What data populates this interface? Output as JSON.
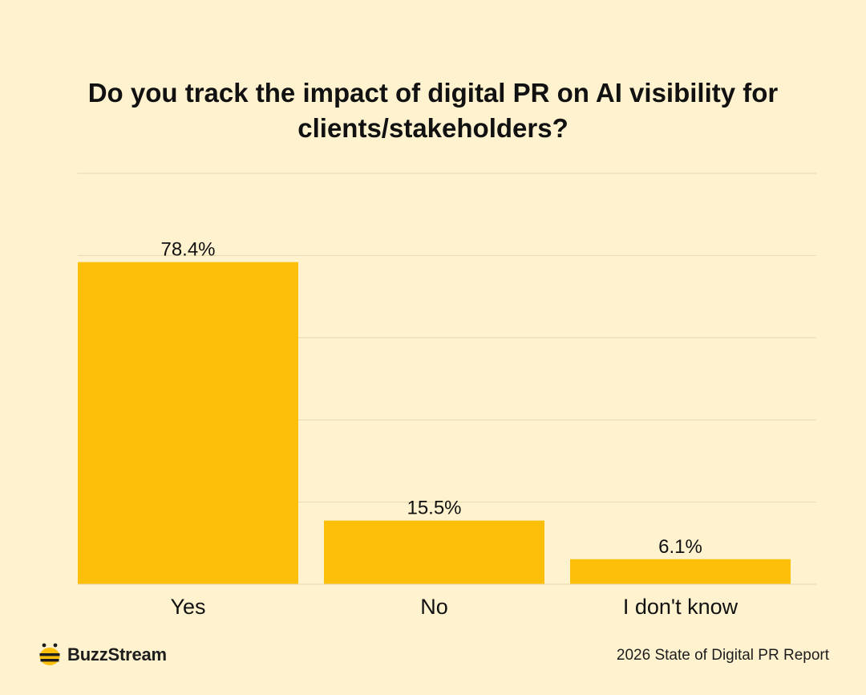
{
  "title": "Do you track the impact of digital PR on AI visibility for clients/stakeholders?",
  "colors": {
    "background": "#FEF2CF",
    "bar": "#FDBF0A",
    "gridline": "#E5D8AE",
    "text": "#111111"
  },
  "chart_data": {
    "type": "bar",
    "title": "Do you track the impact of digital PR on AI visibility for clients/stakeholders?",
    "categories": [
      "Yes",
      "No",
      "I don't know"
    ],
    "values": [
      78.4,
      15.5,
      6.1
    ],
    "value_labels": [
      "78.4%",
      "15.5%",
      "6.1%"
    ],
    "xlabel": "",
    "ylabel": "",
    "ylim": [
      0,
      100
    ],
    "grid": true,
    "legend": "none"
  },
  "footer": {
    "brand": "BuzzStream",
    "brand_icon": "bee-icon",
    "source": "2026 State of Digital PR Report"
  }
}
